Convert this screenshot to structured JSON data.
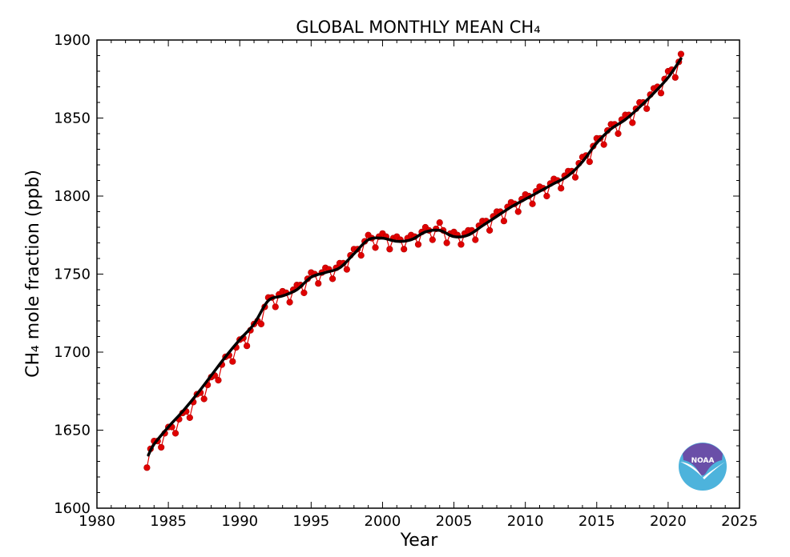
{
  "chart_data": {
    "type": "line",
    "title": "GLOBAL MONTHLY MEAN CH₄",
    "xlabel": "Year",
    "ylabel": "CH₄ mole fraction (ppb)",
    "xlim": [
      1980,
      2025
    ],
    "ylim": [
      1600,
      1900
    ],
    "xticks": [
      "1980",
      "1985",
      "1990",
      "1995",
      "2000",
      "2005",
      "2010",
      "2015",
      "2020",
      "2025"
    ],
    "yticks": [
      "1600",
      "1650",
      "1700",
      "1750",
      "1800",
      "1850",
      "1900"
    ],
    "grid": false,
    "logo": "NOAA",
    "colors": {
      "monthly": "#e00000",
      "trend": "#000000",
      "logo_top": "#6a4fa8",
      "logo_bottom": "#4db3dc"
    },
    "series": [
      {
        "kind": "monthly-mean-points",
        "points": [
          [
            1983.5,
            1626
          ],
          [
            1983.75,
            1638
          ],
          [
            1984,
            1643
          ],
          [
            1984.25,
            1643
          ],
          [
            1984.5,
            1639
          ],
          [
            1984.75,
            1648
          ],
          [
            1985,
            1652
          ],
          [
            1985.25,
            1652
          ],
          [
            1985.5,
            1648
          ],
          [
            1985.75,
            1657
          ],
          [
            1986,
            1661
          ],
          [
            1986.25,
            1662
          ],
          [
            1986.5,
            1658
          ],
          [
            1986.75,
            1668
          ],
          [
            1987,
            1673
          ],
          [
            1987.25,
            1674
          ],
          [
            1987.5,
            1670
          ],
          [
            1987.75,
            1679
          ],
          [
            1988,
            1684
          ],
          [
            1988.25,
            1685
          ],
          [
            1988.5,
            1682
          ],
          [
            1988.75,
            1692
          ],
          [
            1989,
            1697
          ],
          [
            1989.25,
            1698
          ],
          [
            1989.5,
            1694
          ],
          [
            1989.75,
            1703
          ],
          [
            1990,
            1708
          ],
          [
            1990.25,
            1709
          ],
          [
            1990.5,
            1704
          ],
          [
            1990.75,
            1714
          ],
          [
            1991,
            1718
          ],
          [
            1991.25,
            1720
          ],
          [
            1991.5,
            1718
          ],
          [
            1991.75,
            1729
          ],
          [
            1992,
            1735
          ],
          [
            1992.25,
            1735
          ],
          [
            1992.5,
            1729
          ],
          [
            1992.75,
            1737
          ],
          [
            1993,
            1739
          ],
          [
            1993.25,
            1738
          ],
          [
            1993.5,
            1732
          ],
          [
            1993.75,
            1740
          ],
          [
            1994,
            1743
          ],
          [
            1994.25,
            1743
          ],
          [
            1994.5,
            1738
          ],
          [
            1994.75,
            1747
          ],
          [
            1995,
            1751
          ],
          [
            1995.25,
            1750
          ],
          [
            1995.5,
            1744
          ],
          [
            1995.75,
            1751
          ],
          [
            1996,
            1754
          ],
          [
            1996.25,
            1753
          ],
          [
            1996.5,
            1747
          ],
          [
            1996.75,
            1754
          ],
          [
            1997,
            1757
          ],
          [
            1997.25,
            1757
          ],
          [
            1997.5,
            1753
          ],
          [
            1997.75,
            1762
          ],
          [
            1998,
            1766
          ],
          [
            1998.25,
            1766
          ],
          [
            1998.5,
            1762
          ],
          [
            1998.75,
            1771
          ],
          [
            1999,
            1775
          ],
          [
            1999.25,
            1773
          ],
          [
            1999.5,
            1767
          ],
          [
            1999.75,
            1774
          ],
          [
            2000,
            1776
          ],
          [
            2000.25,
            1774
          ],
          [
            2000.5,
            1766
          ],
          [
            2000.75,
            1773
          ],
          [
            2001,
            1774
          ],
          [
            2001.25,
            1772
          ],
          [
            2001.5,
            1766
          ],
          [
            2001.75,
            1773
          ],
          [
            2002,
            1775
          ],
          [
            2002.25,
            1774
          ],
          [
            2002.5,
            1769
          ],
          [
            2002.75,
            1777
          ],
          [
            2003,
            1780
          ],
          [
            2003.25,
            1778
          ],
          [
            2003.5,
            1772
          ],
          [
            2003.75,
            1779
          ],
          [
            2004,
            1783
          ],
          [
            2004.25,
            1778
          ],
          [
            2004.5,
            1770
          ],
          [
            2004.75,
            1776
          ],
          [
            2005,
            1777
          ],
          [
            2005.25,
            1775
          ],
          [
            2005.5,
            1769
          ],
          [
            2005.75,
            1776
          ],
          [
            2006,
            1778
          ],
          [
            2006.25,
            1778
          ],
          [
            2006.5,
            1772
          ],
          [
            2006.75,
            1781
          ],
          [
            2007,
            1784
          ],
          [
            2007.25,
            1784
          ],
          [
            2007.5,
            1778
          ],
          [
            2007.75,
            1787
          ],
          [
            2008,
            1790
          ],
          [
            2008.25,
            1790
          ],
          [
            2008.5,
            1784
          ],
          [
            2008.75,
            1793
          ],
          [
            2009,
            1796
          ],
          [
            2009.25,
            1795
          ],
          [
            2009.5,
            1790
          ],
          [
            2009.75,
            1798
          ],
          [
            2010,
            1801
          ],
          [
            2010.25,
            1800
          ],
          [
            2010.5,
            1795
          ],
          [
            2010.75,
            1803
          ],
          [
            2011,
            1806
          ],
          [
            2011.25,
            1805
          ],
          [
            2011.5,
            1800
          ],
          [
            2011.75,
            1808
          ],
          [
            2012,
            1811
          ],
          [
            2012.25,
            1810
          ],
          [
            2012.5,
            1805
          ],
          [
            2012.75,
            1813
          ],
          [
            2013,
            1816
          ],
          [
            2013.25,
            1816
          ],
          [
            2013.5,
            1812
          ],
          [
            2013.75,
            1821
          ],
          [
            2014,
            1825
          ],
          [
            2014.25,
            1826
          ],
          [
            2014.5,
            1822
          ],
          [
            2014.75,
            1832
          ],
          [
            2015,
            1837
          ],
          [
            2015.25,
            1837
          ],
          [
            2015.5,
            1833
          ],
          [
            2015.75,
            1842
          ],
          [
            2016,
            1846
          ],
          [
            2016.25,
            1846
          ],
          [
            2016.5,
            1840
          ],
          [
            2016.75,
            1849
          ],
          [
            2017,
            1852
          ],
          [
            2017.25,
            1852
          ],
          [
            2017.5,
            1847
          ],
          [
            2017.75,
            1856
          ],
          [
            2018,
            1860
          ],
          [
            2018.25,
            1860
          ],
          [
            2018.5,
            1856
          ],
          [
            2018.75,
            1865
          ],
          [
            2019,
            1869
          ],
          [
            2019.25,
            1870
          ],
          [
            2019.5,
            1866
          ],
          [
            2019.75,
            1875
          ],
          [
            2020,
            1880
          ],
          [
            2020.25,
            1881
          ],
          [
            2020.5,
            1876
          ],
          [
            2020.75,
            1886
          ],
          [
            2020.9,
            1891
          ]
        ]
      },
      {
        "kind": "trend-line",
        "points": [
          [
            1983.6,
            1634
          ],
          [
            1984,
            1641
          ],
          [
            1985,
            1652
          ],
          [
            1986,
            1662
          ],
          [
            1987,
            1673
          ],
          [
            1988,
            1685
          ],
          [
            1989,
            1697
          ],
          [
            1990,
            1708
          ],
          [
            1991,
            1718
          ],
          [
            1992,
            1733
          ],
          [
            1993,
            1736
          ],
          [
            1994,
            1740
          ],
          [
            1995,
            1748
          ],
          [
            1996,
            1751
          ],
          [
            1997,
            1754
          ],
          [
            1998,
            1763
          ],
          [
            1999,
            1772
          ],
          [
            2000,
            1773
          ],
          [
            2001,
            1771
          ],
          [
            2002,
            1772
          ],
          [
            2003,
            1777
          ],
          [
            2004,
            1778
          ],
          [
            2005,
            1774
          ],
          [
            2006,
            1775
          ],
          [
            2007,
            1781
          ],
          [
            2008,
            1787
          ],
          [
            2009,
            1793
          ],
          [
            2010,
            1798
          ],
          [
            2011,
            1803
          ],
          [
            2012,
            1808
          ],
          [
            2013,
            1813
          ],
          [
            2014,
            1822
          ],
          [
            2015,
            1834
          ],
          [
            2016,
            1843
          ],
          [
            2017,
            1849
          ],
          [
            2018,
            1857
          ],
          [
            2019,
            1866
          ],
          [
            2020,
            1876
          ],
          [
            2020.9,
            1888
          ]
        ]
      }
    ]
  }
}
